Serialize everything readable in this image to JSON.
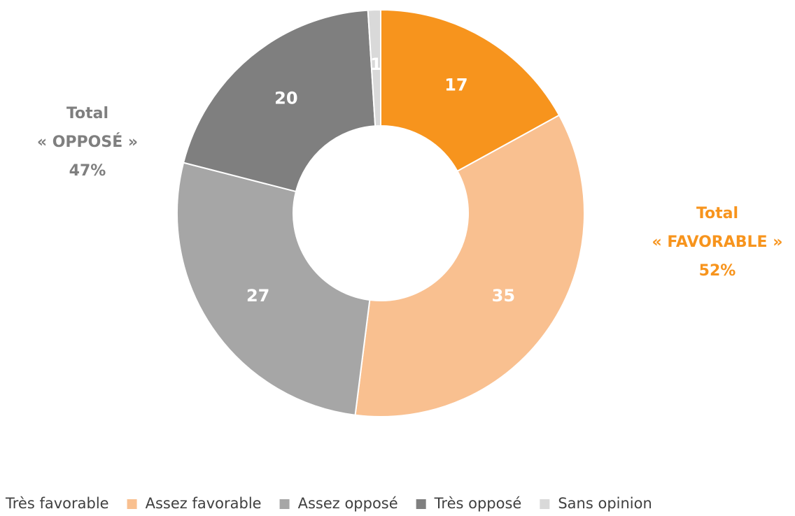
{
  "chart_data": {
    "type": "donut",
    "categories": [
      "Très favorable",
      "Assez favorable",
      "Assez opposé",
      "Très opposé",
      "Sans opinion"
    ],
    "values": [
      17,
      35,
      27,
      20,
      1
    ],
    "colors": [
      "#f7941d",
      "#f9c090",
      "#a6a6a6",
      "#7f7f7f",
      "#d9d9d9"
    ],
    "legend": "bottom",
    "annotations": [
      {
        "lines": [
          "Total",
          "« OPPOSÉ »",
          "47%"
        ],
        "color": "#7f7f7f"
      },
      {
        "lines": [
          "Total",
          "« FAVORABLE »",
          "52%"
        ],
        "color": "#f7941d"
      }
    ]
  }
}
